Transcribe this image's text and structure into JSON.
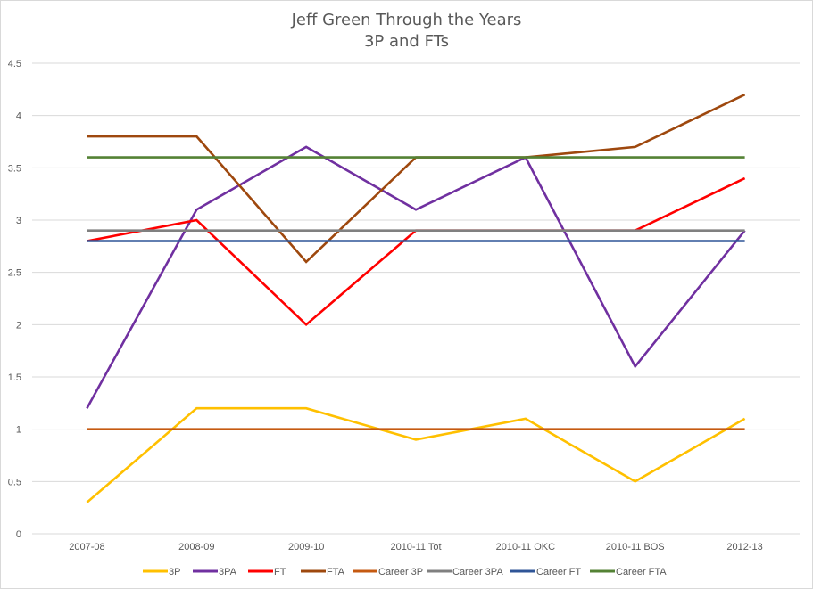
{
  "chart_data": {
    "type": "line",
    "title": "Jeff Green Through the Years",
    "subtitle": "3P and FTs",
    "xlabel": "",
    "ylabel": "",
    "categories": [
      "2007-08",
      "2008-09",
      "2009-10",
      "2010-11 Tot",
      "2010-11 OKC",
      "2010-11 BOS",
      "2012-13"
    ],
    "ylim": [
      0,
      4.5
    ],
    "yticks": [
      "0",
      "0.5",
      "1",
      "1.5",
      "2",
      "2.5",
      "3",
      "3.5",
      "4",
      "4.5"
    ],
    "ytick_values": [
      0,
      0.5,
      1,
      1.5,
      2,
      2.5,
      3,
      3.5,
      4,
      4.5
    ],
    "grid": true,
    "legend_position": "bottom",
    "series": [
      {
        "name": "3P",
        "color": "#ffc000",
        "values": [
          0.3,
          1.2,
          1.2,
          0.9,
          1.1,
          0.5,
          1.1
        ]
      },
      {
        "name": "3PA",
        "color": "#7030a0",
        "values": [
          1.2,
          3.1,
          3.7,
          3.1,
          3.6,
          1.6,
          2.9
        ]
      },
      {
        "name": "FT",
        "color": "#ff0000",
        "values": [
          2.8,
          3.0,
          2.0,
          2.9,
          2.9,
          2.9,
          3.4
        ]
      },
      {
        "name": "FTA",
        "color": "#9e480e",
        "values": [
          3.8,
          3.8,
          2.6,
          3.6,
          3.6,
          3.7,
          4.2
        ]
      },
      {
        "name": "Career 3P",
        "color": "#c55a11",
        "values": [
          1.0,
          1.0,
          1.0,
          1.0,
          1.0,
          1.0,
          1.0
        ]
      },
      {
        "name": "Career 3PA",
        "color": "#808080",
        "values": [
          2.9,
          2.9,
          2.9,
          2.9,
          2.9,
          2.9,
          2.9
        ]
      },
      {
        "name": "Career FT",
        "color": "#2f5597",
        "values": [
          2.8,
          2.8,
          2.8,
          2.8,
          2.8,
          2.8,
          2.8
        ]
      },
      {
        "name": "Career FTA",
        "color": "#548235",
        "values": [
          3.6,
          3.6,
          3.6,
          3.6,
          3.6,
          3.6,
          3.6
        ]
      }
    ]
  }
}
